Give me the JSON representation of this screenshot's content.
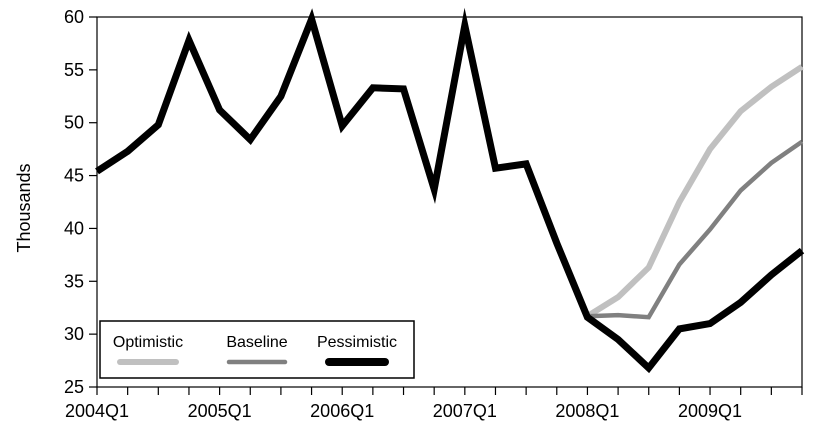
{
  "chart_data": {
    "type": "line",
    "ylabel": "Thousands",
    "ylim": [
      25,
      60
    ],
    "yticks": [
      25,
      30,
      35,
      40,
      45,
      50,
      55,
      60
    ],
    "x": [
      "2004Q1",
      "2004Q2",
      "2004Q3",
      "2004Q4",
      "2005Q1",
      "2005Q2",
      "2005Q3",
      "2005Q4",
      "2006Q1",
      "2006Q2",
      "2006Q3",
      "2006Q4",
      "2007Q1",
      "2007Q2",
      "2007Q3",
      "2007Q4",
      "2008Q1",
      "2008Q2",
      "2008Q3",
      "2008Q4",
      "2009Q1",
      "2009Q2",
      "2009Q3",
      "2009Q4"
    ],
    "xtick_labels": [
      "2004Q1",
      "2005Q1",
      "2006Q1",
      "2007Q1",
      "2008Q1",
      "2009Q1"
    ],
    "grid": false,
    "legend_position": "bottom-left",
    "series": [
      {
        "name": "Optimistic",
        "color": "#c0c0c0",
        "x": [
          "2008Q1",
          "2008Q2",
          "2008Q3",
          "2008Q4",
          "2009Q1",
          "2009Q2",
          "2009Q3",
          "2009Q4"
        ],
        "values": [
          31.7,
          33.5,
          36.3,
          42.5,
          47.5,
          51.1,
          53.4,
          55.3
        ]
      },
      {
        "name": "Baseline",
        "color": "#808080",
        "x": [
          "2008Q1",
          "2008Q2",
          "2008Q3",
          "2008Q4",
          "2009Q1",
          "2009Q2",
          "2009Q3",
          "2009Q4"
        ],
        "values": [
          31.7,
          31.8,
          31.6,
          36.6,
          39.9,
          43.6,
          46.2,
          48.2
        ]
      },
      {
        "name": "Pessimistic",
        "color": "#000000",
        "x": [
          "2004Q1",
          "2004Q2",
          "2004Q3",
          "2004Q4",
          "2005Q1",
          "2005Q2",
          "2005Q3",
          "2005Q4",
          "2006Q1",
          "2006Q2",
          "2006Q3",
          "2006Q4",
          "2007Q1",
          "2007Q2",
          "2007Q3",
          "2007Q4",
          "2008Q1",
          "2008Q2",
          "2008Q3",
          "2008Q4",
          "2009Q1",
          "2009Q2",
          "2009Q3",
          "2009Q4"
        ],
        "values": [
          45.4,
          47.3,
          49.8,
          57.8,
          51.2,
          48.4,
          52.5,
          59.8,
          49.7,
          53.3,
          53.2,
          43.7,
          59.2,
          45.7,
          46.1,
          38.6,
          31.6,
          29.5,
          26.8,
          30.5,
          31.0,
          33.0,
          35.6,
          37.9
        ]
      }
    ]
  }
}
